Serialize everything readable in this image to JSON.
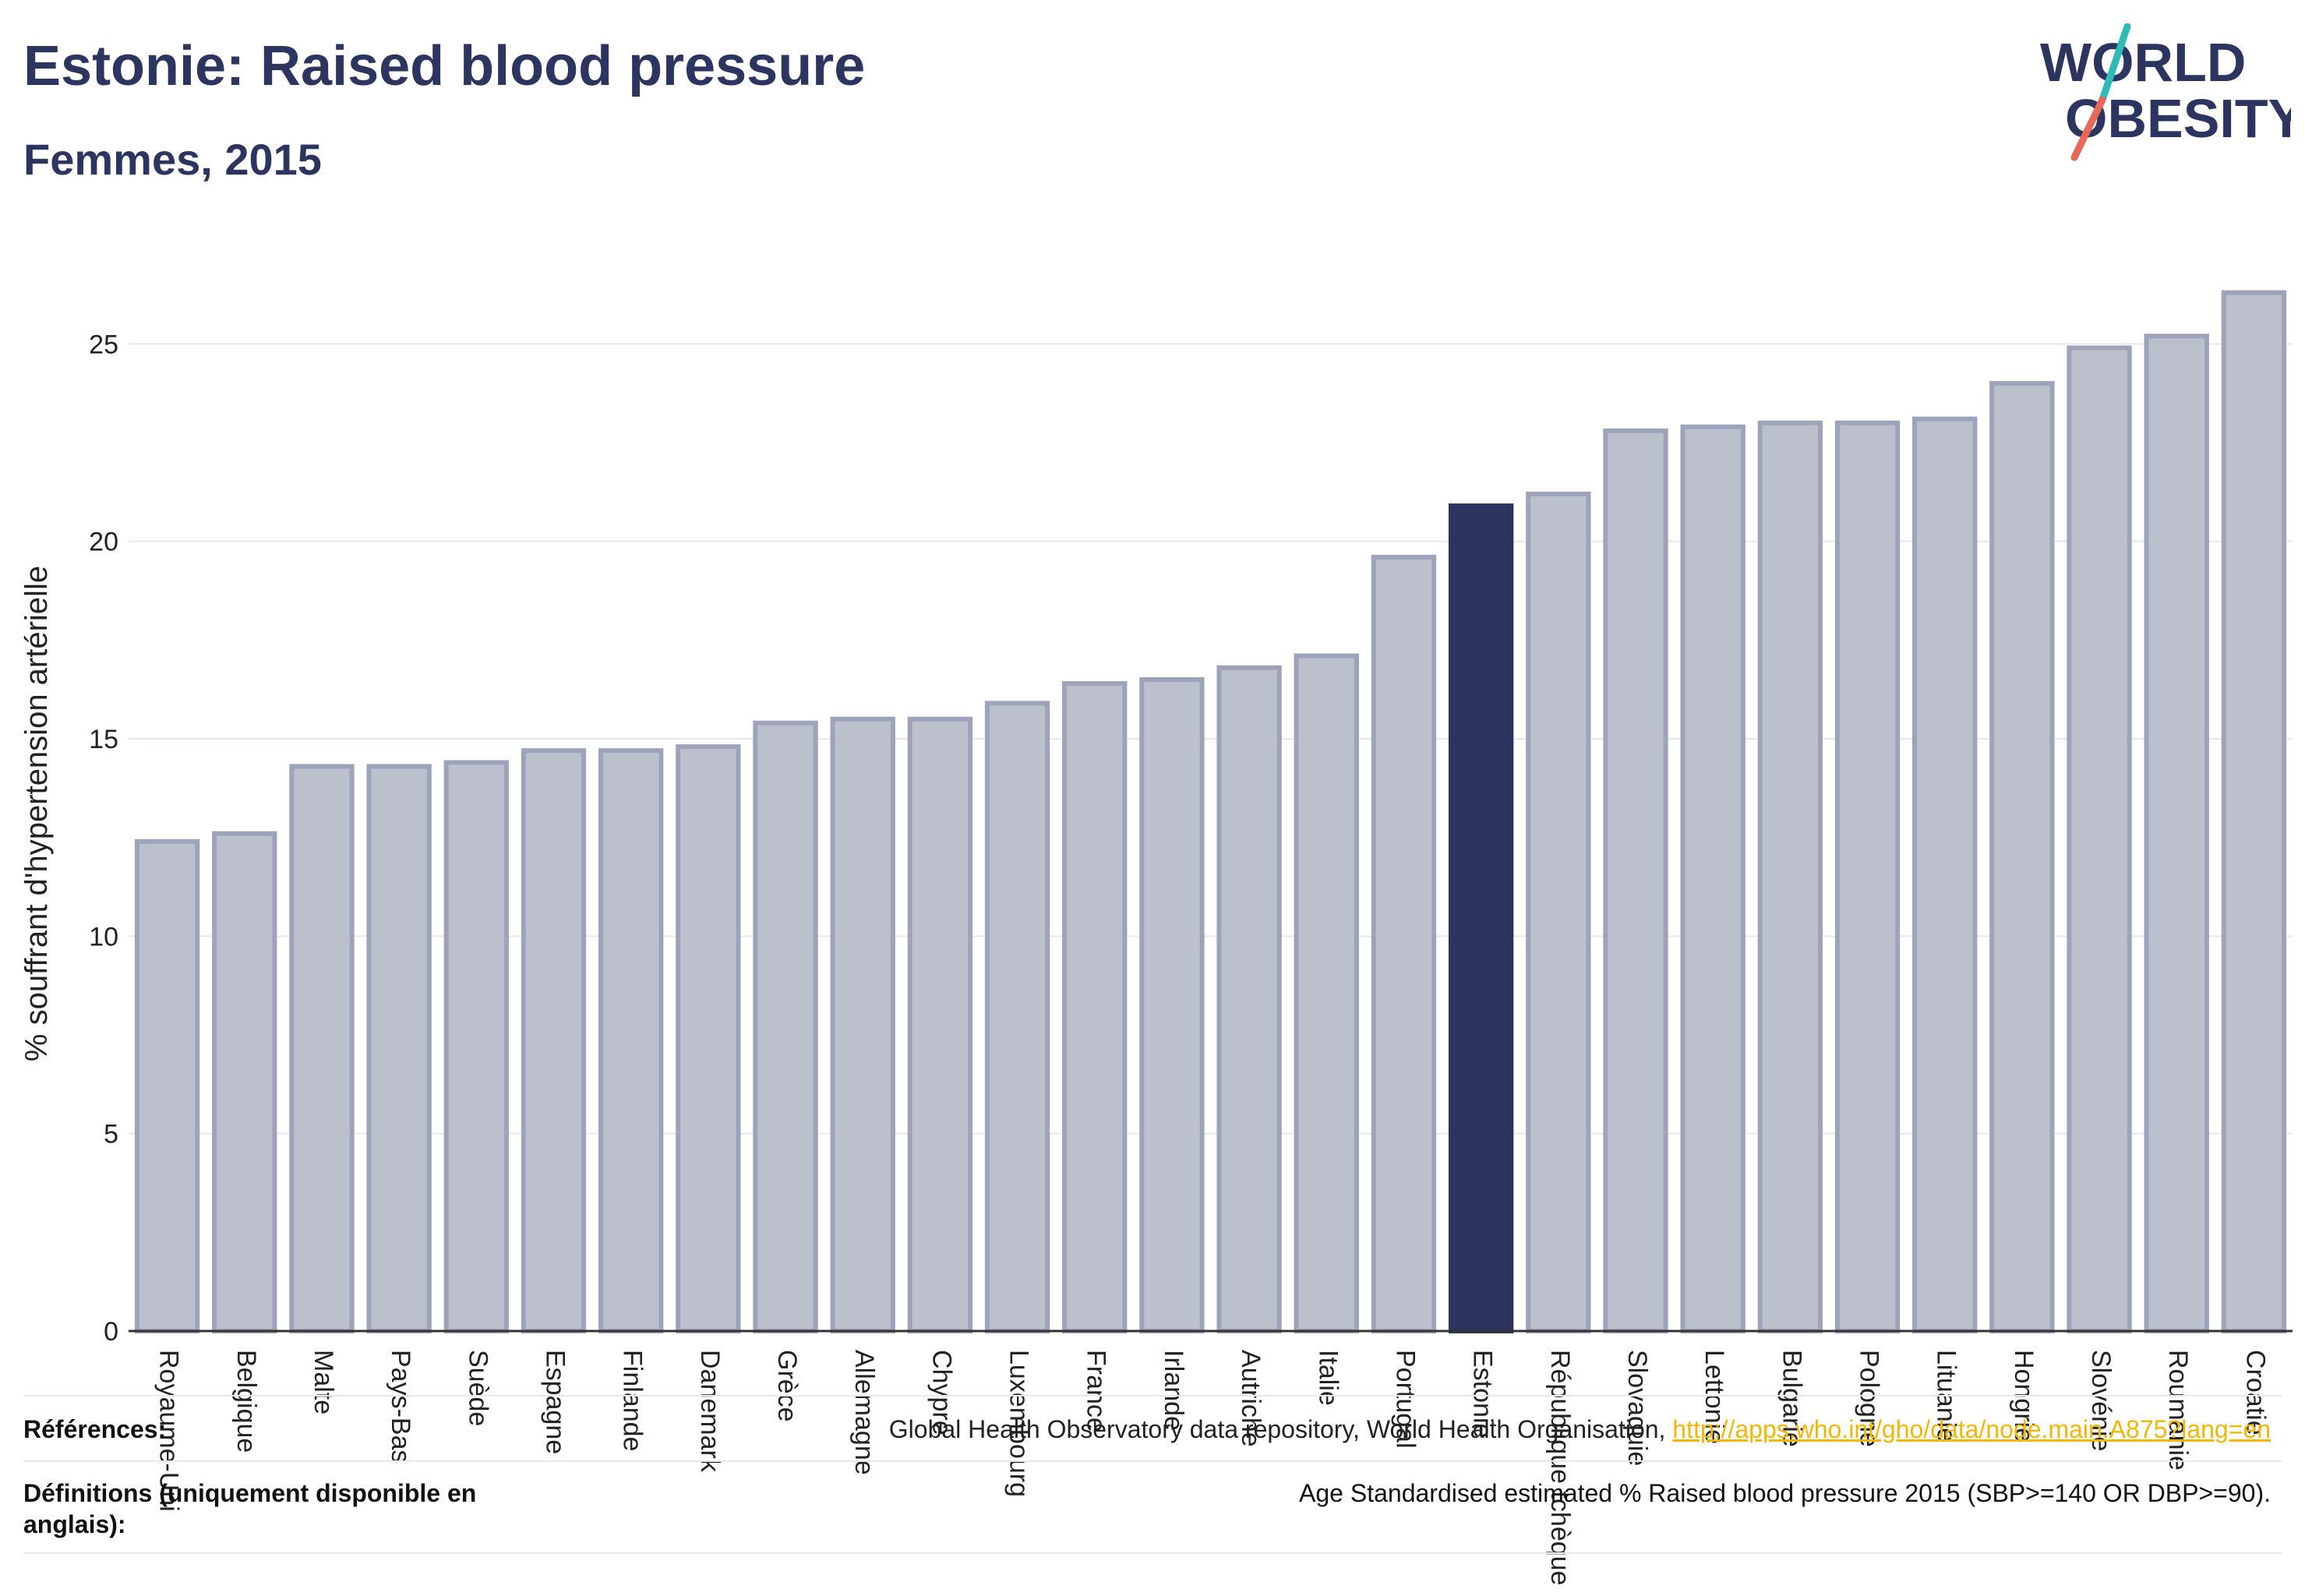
{
  "title": "Estonie: Raised blood pressure",
  "subtitle": "Femmes, 2015",
  "logo": {
    "line1": "WORLD",
    "line2": "OBESITY",
    "brand_color": "#2b355f",
    "slash_colors": [
      "#2dbcb6",
      "#e8685a"
    ]
  },
  "colors": {
    "bar": "#bcc0cd",
    "bar_stroke": "#9da3b8",
    "highlight": "#2b355f",
    "axis_text": "#222222",
    "grid": "#e6e8f0"
  },
  "chart_data": {
    "type": "bar",
    "ylabel": "% souffrant d'hypertension artérielle",
    "ylim": [
      0,
      27
    ],
    "yticks": [
      0,
      5,
      10,
      15,
      20,
      25
    ],
    "highlight": "Estonie",
    "grid": true,
    "categories": [
      "Royaume-Uni",
      "Belgique",
      "Malte",
      "Pays-Bas",
      "Suède",
      "Espagne",
      "Finlande",
      "Danemark",
      "Grèce",
      "Allemagne",
      "Chypre",
      "Luxembourg",
      "France",
      "Irlande",
      "Autriche",
      "Italie",
      "Portugal",
      "Estonie",
      "République tchèque",
      "Slovaquie",
      "Lettonie",
      "Bulgarie",
      "Pologne",
      "Lituanie",
      "Hongrie",
      "Slovénie",
      "Roumanie",
      "Croatie"
    ],
    "values": [
      12.4,
      12.6,
      14.3,
      14.3,
      14.4,
      14.7,
      14.7,
      14.8,
      15.4,
      15.5,
      15.5,
      15.9,
      16.4,
      16.5,
      16.8,
      17.1,
      19.6,
      20.9,
      21.2,
      22.8,
      22.9,
      23.0,
      23.0,
      23.1,
      24.0,
      24.9,
      25.2,
      26.3
    ]
  },
  "footer": {
    "references_label": "Références:",
    "references_text": "Global Health Observatory data repository, World Health Organisation, ",
    "references_link": "http://apps.who.int/gho/data/node.main.A875?lang=en",
    "definitions_label": "Définitions (uniquement disponible en anglais):",
    "definitions_text": "Age Standardised estimated % Raised blood pressure 2015 (SBP>=140 OR DBP>=90)."
  }
}
